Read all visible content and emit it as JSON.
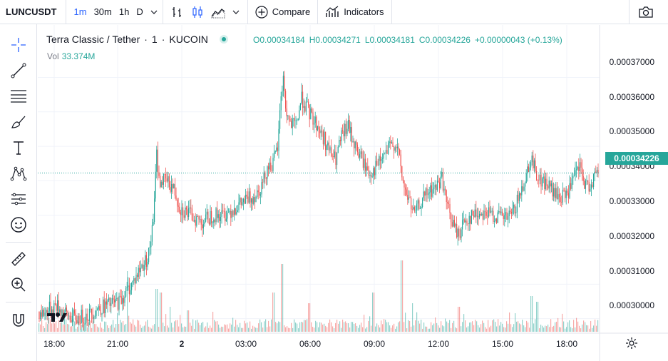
{
  "toolbar": {
    "symbol": "LUNCUSDT",
    "timeframes": [
      "1m",
      "30m",
      "1h",
      "D"
    ],
    "active_timeframe": "1m",
    "compare_label": "Compare",
    "indicators_label": "Indicators",
    "icons": [
      "chevron-down-icon",
      "bar-chart-icon",
      "candles-icon",
      "area-chart-icon",
      "chevron-down-icon",
      "plus-circle-icon",
      "indicators-icon",
      "camera-icon"
    ]
  },
  "left_toolbar": {
    "icons": [
      "crosshair-icon",
      "trendline-icon",
      "fib-retracement-icon",
      "brush-icon",
      "text-icon",
      "pattern-icon",
      "prediction-icon",
      "emoji-icon",
      "ruler-icon",
      "zoom-in-icon",
      "magnet-icon"
    ]
  },
  "legend": {
    "title": "Terra Classic / Tether",
    "interval": "1",
    "exchange": "KUCOIN",
    "status_color": "#26a69a",
    "open": "O0.00034184",
    "high": "H0.00034271",
    "low": "L0.00034181",
    "close": "C0.00034226",
    "change": "+0.00000043 (+0.13%)",
    "vol_label": "Vol",
    "vol_value": "33.374M"
  },
  "colors": {
    "up": "#26a69a",
    "down": "#ef5350",
    "grid": "#f0f3fa",
    "accent": "#2962ff"
  },
  "chart_data": {
    "type": "candlestick",
    "title": "Terra Classic / Tether",
    "current_price": "0.00034226",
    "y_ticks": [
      "0.00037000",
      "0.00036000",
      "0.00035000",
      "0.00034000",
      "0.00033000",
      "0.00032000",
      "0.00031000",
      "0.00030000"
    ],
    "x_ticks": [
      "18:00",
      "21:00",
      "2",
      "03:00",
      "06:00",
      "09:00",
      "12:00",
      "15:00",
      "18:00"
    ],
    "ylim": [
      0.0002962,
      0.000379
    ],
    "close_path": [
      [
        0,
        0.000302
      ],
      [
        8,
        0.0003015
      ],
      [
        25,
        0.000304
      ],
      [
        40,
        0.000301
      ],
      [
        55,
        0.0003
      ],
      [
        70,
        0.000301
      ],
      [
        85,
        0.000303
      ],
      [
        100,
        0.000304
      ],
      [
        115,
        0.000305
      ],
      [
        125,
        0.000308
      ],
      [
        135,
        0.000311
      ],
      [
        145,
        0.000315
      ],
      [
        155,
        0.000318
      ],
      [
        163,
        0.000329
      ],
      [
        166,
        0.00035
      ],
      [
        170,
        0.00034
      ],
      [
        180,
        0.00034
      ],
      [
        190,
        0.000338
      ],
      [
        200,
        0.000332
      ],
      [
        215,
        0.00033
      ],
      [
        230,
        0.000328
      ],
      [
        245,
        0.00033
      ],
      [
        260,
        0.00033
      ],
      [
        275,
        0.000332
      ],
      [
        290,
        0.000334
      ],
      [
        305,
        0.000336
      ],
      [
        315,
        0.000339
      ],
      [
        322,
        0.000344
      ],
      [
        330,
        0.000345
      ],
      [
        337,
        0.00035
      ],
      [
        341,
        0.000365
      ],
      [
        345,
        0.00037
      ],
      [
        348,
        0.00036
      ],
      [
        355,
        0.000356
      ],
      [
        362,
        0.000356
      ],
      [
        370,
        0.000364
      ],
      [
        380,
        0.00036
      ],
      [
        392,
        0.000356
      ],
      [
        402,
        0.000352
      ],
      [
        410,
        0.000348
      ],
      [
        418,
        0.000346
      ],
      [
        425,
        0.000352
      ],
      [
        435,
        0.000356
      ],
      [
        445,
        0.00035
      ],
      [
        455,
        0.000346
      ],
      [
        465,
        0.000342
      ],
      [
        475,
        0.000344
      ],
      [
        485,
        0.000347
      ],
      [
        495,
        0.00035
      ],
      [
        502,
        0.000351
      ],
      [
        506,
        0.000348
      ],
      [
        510,
        0.000342
      ],
      [
        515,
        0.000337
      ],
      [
        520,
        0.000335
      ],
      [
        528,
        0.00033
      ],
      [
        535,
        0.000333
      ],
      [
        545,
        0.000336
      ],
      [
        558,
        0.000338
      ],
      [
        567,
        0.000341
      ],
      [
        572,
        0.000335
      ],
      [
        578,
        0.00033
      ],
      [
        585,
        0.000326
      ],
      [
        590,
        0.000324
      ],
      [
        597,
        0.000328
      ],
      [
        610,
        0.00033
      ],
      [
        625,
        0.000331
      ],
      [
        640,
        0.00033
      ],
      [
        655,
        0.000329
      ],
      [
        665,
        0.00033
      ],
      [
        675,
        0.000335
      ],
      [
        685,
        0.000342
      ],
      [
        692,
        0.000347
      ],
      [
        696,
        0.000344
      ],
      [
        705,
        0.00034
      ],
      [
        715,
        0.000339
      ],
      [
        725,
        0.000336
      ],
      [
        735,
        0.000335
      ],
      [
        745,
        0.000337
      ],
      [
        755,
        0.000342
      ],
      [
        760,
        0.000344
      ],
      [
        765,
        0.00034
      ],
      [
        772,
        0.000338
      ],
      [
        780,
        0.000341
      ],
      [
        786,
        0.0003423
      ]
    ],
    "volume_spikes": [
      [
        125,
        0.85
      ],
      [
        166,
        0.6
      ],
      [
        172,
        0.55
      ],
      [
        185,
        0.35
      ],
      [
        210,
        0.3
      ],
      [
        245,
        0.28
      ],
      [
        330,
        0.55
      ],
      [
        342,
        0.95
      ],
      [
        380,
        0.4
      ],
      [
        470,
        0.55
      ],
      [
        510,
        1.0
      ],
      [
        525,
        0.4
      ],
      [
        590,
        0.35
      ],
      [
        692,
        0.5
      ],
      [
        700,
        0.42
      ]
    ]
  }
}
